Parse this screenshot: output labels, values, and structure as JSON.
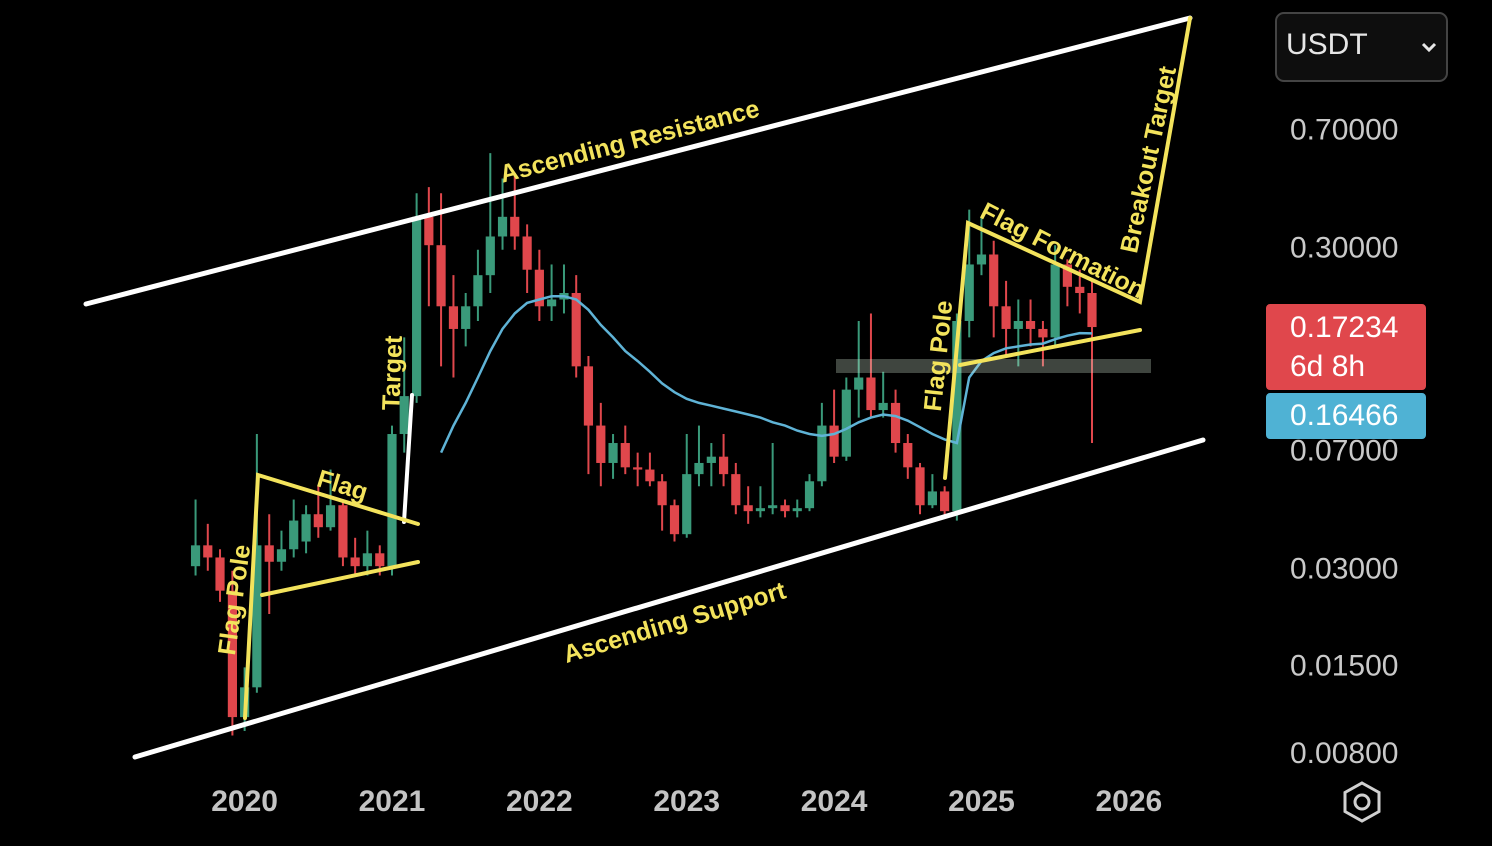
{
  "chart_data": {
    "type": "candlestick",
    "x": [
      2019.667,
      2019.75,
      2019.833,
      2019.917,
      2020,
      2020.083,
      2020.167,
      2020.25,
      2020.333,
      2020.417,
      2020.5,
      2020.583,
      2020.667,
      2020.75,
      2020.833,
      2020.917,
      2021,
      2021.083,
      2021.167,
      2021.25,
      2021.333,
      2021.417,
      2021.5,
      2021.583,
      2021.667,
      2021.75,
      2021.833,
      2021.917,
      2022,
      2022.083,
      2022.167,
      2022.25,
      2022.333,
      2022.417,
      2022.5,
      2022.583,
      2022.667,
      2022.75,
      2022.833,
      2022.917,
      2023,
      2023.083,
      2023.167,
      2023.25,
      2023.333,
      2023.417,
      2023.5,
      2023.583,
      2023.667,
      2023.75,
      2023.833,
      2023.917,
      2024,
      2024.083,
      2024.167,
      2024.25,
      2024.333,
      2024.417,
      2024.5,
      2024.583,
      2024.667,
      2024.75,
      2024.833,
      2024.917,
      2025,
      2025.083,
      2025.167,
      2025.25,
      2025.333,
      2025.417,
      2025.5,
      2025.583,
      2025.667,
      2025.75
    ],
    "open": [
      0.031,
      0.036,
      0.033,
      0.026,
      0.0105,
      0.013,
      0.036,
      0.032,
      0.035,
      0.037,
      0.045,
      0.041,
      0.048,
      0.033,
      0.031,
      0.034,
      0.031,
      0.08,
      0.105,
      0.38,
      0.31,
      0.2,
      0.17,
      0.2,
      0.25,
      0.33,
      0.38,
      0.33,
      0.26,
      0.2,
      0.21,
      0.22,
      0.13,
      0.085,
      0.065,
      0.075,
      0.063,
      0.062,
      0.057,
      0.048,
      0.039,
      0.06,
      0.065,
      0.068,
      0.06,
      0.048,
      0.046,
      0.047,
      0.048,
      0.046,
      0.047,
      0.057,
      0.085,
      0.068,
      0.11,
      0.12,
      0.095,
      0.1,
      0.075,
      0.063,
      0.048,
      0.053,
      0.046,
      0.18,
      0.27,
      0.29,
      0.2,
      0.17,
      0.18,
      0.17,
      0.16,
      0.27,
      0.23,
      0.22
    ],
    "high": [
      0.05,
      0.042,
      0.035,
      0.03,
      0.015,
      0.08,
      0.045,
      0.04,
      0.05,
      0.048,
      0.055,
      0.062,
      0.05,
      0.038,
      0.04,
      0.036,
      0.085,
      0.16,
      0.45,
      0.47,
      0.45,
      0.25,
      0.22,
      0.3,
      0.6,
      0.5,
      0.52,
      0.36,
      0.3,
      0.27,
      0.27,
      0.25,
      0.14,
      0.1,
      0.08,
      0.085,
      0.07,
      0.07,
      0.06,
      0.05,
      0.08,
      0.085,
      0.075,
      0.08,
      0.065,
      0.055,
      0.055,
      0.075,
      0.05,
      0.05,
      0.06,
      0.1,
      0.11,
      0.12,
      0.18,
      0.19,
      0.125,
      0.11,
      0.08,
      0.065,
      0.06,
      0.055,
      0.19,
      0.4,
      0.38,
      0.32,
      0.24,
      0.21,
      0.21,
      0.18,
      0.31,
      0.28,
      0.26,
      0.24
    ],
    "low": [
      0.029,
      0.03,
      0.024,
      0.0092,
      0.0095,
      0.0125,
      0.022,
      0.03,
      0.033,
      0.034,
      0.038,
      0.04,
      0.031,
      0.029,
      0.029,
      0.029,
      0.029,
      0.07,
      0.1,
      0.2,
      0.13,
      0.12,
      0.15,
      0.18,
      0.22,
      0.3,
      0.3,
      0.22,
      0.18,
      0.18,
      0.19,
      0.12,
      0.06,
      0.055,
      0.058,
      0.06,
      0.055,
      0.055,
      0.04,
      0.037,
      0.038,
      0.055,
      0.055,
      0.055,
      0.045,
      0.042,
      0.044,
      0.045,
      0.044,
      0.044,
      0.046,
      0.055,
      0.065,
      0.066,
      0.09,
      0.09,
      0.09,
      0.07,
      0.058,
      0.045,
      0.047,
      0.044,
      0.043,
      0.16,
      0.25,
      0.16,
      0.14,
      0.13,
      0.15,
      0.13,
      0.15,
      0.2,
      0.19,
      0.075
    ],
    "close": [
      0.036,
      0.033,
      0.026,
      0.0105,
      0.013,
      0.036,
      0.032,
      0.035,
      0.043,
      0.045,
      0.041,
      0.048,
      0.033,
      0.031,
      0.034,
      0.031,
      0.08,
      0.105,
      0.38,
      0.31,
      0.2,
      0.17,
      0.2,
      0.25,
      0.33,
      0.38,
      0.33,
      0.26,
      0.2,
      0.21,
      0.22,
      0.13,
      0.085,
      0.065,
      0.075,
      0.063,
      0.062,
      0.057,
      0.048,
      0.039,
      0.06,
      0.065,
      0.068,
      0.06,
      0.048,
      0.046,
      0.047,
      0.048,
      0.046,
      0.047,
      0.057,
      0.085,
      0.068,
      0.11,
      0.12,
      0.095,
      0.1,
      0.075,
      0.063,
      0.048,
      0.053,
      0.046,
      0.18,
      0.27,
      0.29,
      0.2,
      0.17,
      0.18,
      0.17,
      0.16,
      0.27,
      0.23,
      0.22,
      0.17234
    ],
    "up_color": "#3a9a7a",
    "down_color": "#e0474c",
    "overlay": {
      "color": "#5fb3d6",
      "values": [
        null,
        null,
        null,
        null,
        null,
        null,
        null,
        null,
        null,
        null,
        null,
        null,
        null,
        null,
        null,
        null,
        null,
        null,
        null,
        null,
        0.07,
        0.085,
        0.1,
        0.12,
        0.145,
        0.17,
        0.19,
        0.205,
        0.21,
        0.215,
        0.215,
        0.21,
        0.195,
        0.175,
        0.16,
        0.145,
        0.135,
        0.125,
        0.115,
        0.108,
        0.103,
        0.1,
        0.098,
        0.096,
        0.094,
        0.092,
        0.09,
        0.087,
        0.085,
        0.082,
        0.08,
        0.079,
        0.08,
        0.083,
        0.087,
        0.09,
        0.092,
        0.091,
        0.088,
        0.084,
        0.08,
        0.077,
        0.075,
        0.12,
        0.135,
        0.143,
        0.148,
        0.15,
        0.152,
        0.153,
        0.158,
        0.162,
        0.165,
        0.16466
      ]
    },
    "xlim": [
      2018.34,
      2026.89
    ],
    "xticks": [
      2020,
      2021,
      2022,
      2023,
      2024,
      2025,
      2026
    ],
    "ylim": [
      0.0075,
      1.8
    ],
    "log_scale": true,
    "yticks": [
      {
        "value": 0.7,
        "label": "0.70000"
      },
      {
        "value": 0.3,
        "label": "0.30000"
      },
      {
        "value": 0.07,
        "label": "0.07000"
      },
      {
        "value": 0.03,
        "label": "0.03000"
      },
      {
        "value": 0.015,
        "label": "0.01500"
      },
      {
        "value": 0.008,
        "label": "0.00800"
      }
    ],
    "last_price": 0.17234,
    "countdown": "6d 8h",
    "ma_last": 0.16466,
    "currency": "USDT",
    "annotations": [
      "Ascending Resistance",
      "Ascending Support",
      "Flag",
      "Flag Pole",
      "Target",
      "Flag Pole",
      "Flag Formation",
      "Breakout Target"
    ]
  }
}
